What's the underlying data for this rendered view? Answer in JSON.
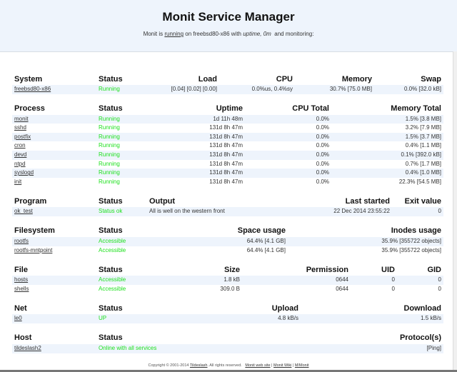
{
  "header": {
    "title": "Monit Service Manager",
    "sub_prefix": "Monit is",
    "sub_running": "running",
    "sub_middle": "on freebsd80-x86 with",
    "sub_uptime": "uptime, 0m",
    "sub_suffix": "and monitoring:"
  },
  "sections": [
    {
      "key": "system",
      "columns": [
        "System",
        "Status",
        "Load",
        "CPU",
        "Memory",
        "Swap"
      ],
      "rows": [
        [
          "freebsd80-x86",
          "Running",
          "[0.04] [0.02] [0.00]",
          "0.0%us, 0.4%sy",
          "30.7% [75.0 MB]",
          "0.0% [32.0 kB]"
        ]
      ]
    },
    {
      "key": "process",
      "columns": [
        "Process",
        "Status",
        "Uptime",
        "CPU Total",
        "Memory Total"
      ],
      "rows": [
        [
          "monit",
          "Running",
          "1d 11h 48m",
          "0.0%",
          "1.5% [3.8 MB]"
        ],
        [
          "sshd",
          "Running",
          "131d 8h 47m",
          "0.0%",
          "3.2% [7.9 MB]"
        ],
        [
          "postfix",
          "Running",
          "131d 8h 47m",
          "0.0%",
          "1.5% [3.7 MB]"
        ],
        [
          "cron",
          "Running",
          "131d 8h 47m",
          "0.0%",
          "0.4% [1.1 MB]"
        ],
        [
          "devd",
          "Running",
          "131d 8h 47m",
          "0.0%",
          "0.1% [392.0 kB]"
        ],
        [
          "ntpd",
          "Running",
          "131d 8h 47m",
          "0.0%",
          "0.7% [1.7 MB]"
        ],
        [
          "syslogd",
          "Running",
          "131d 8h 47m",
          "0.0%",
          "0.4% [1.0 MB]"
        ],
        [
          "init",
          "Running",
          "131d 8h 47m",
          "0.0%",
          "22.3% [54.5 MB]"
        ]
      ]
    },
    {
      "key": "program",
      "columns": [
        "Program",
        "Status",
        "Output",
        "Last started",
        "Exit value"
      ],
      "rows": [
        [
          "ok_test",
          "Status ok",
          "All is well on the western front",
          "22 Dec 2014 23:55:22",
          "0"
        ]
      ]
    },
    {
      "key": "filesystem",
      "columns": [
        "Filesystem",
        "Status",
        "Space usage",
        "Inodes usage"
      ],
      "rows": [
        [
          "rootfs",
          "Accessible",
          "64.4% [4.1 GB]",
          "35.9% [355722 objects]"
        ],
        [
          "rootfs-mntpoint",
          "Accessible",
          "64.4% [4.1 GB]",
          "35.9% [355722 objects]"
        ]
      ]
    },
    {
      "key": "file",
      "columns": [
        "File",
        "Status",
        "Size",
        "Permission",
        "UID",
        "GID"
      ],
      "rows": [
        [
          "hosts",
          "Accessible",
          "1.8 kB",
          "0644",
          "0",
          "0"
        ],
        [
          "shells",
          "Accessible",
          "309.0 B",
          "0644",
          "0",
          "0"
        ]
      ]
    },
    {
      "key": "net",
      "columns": [
        "Net",
        "Status",
        "Upload",
        "Download"
      ],
      "rows": [
        [
          "le0",
          "UP",
          "4.8 kB/s",
          "1.5 kB/s"
        ]
      ]
    },
    {
      "key": "host",
      "columns": [
        "Host",
        "Status",
        "Protocol(s)"
      ],
      "rows": [
        [
          "tildeslash2",
          "Online with all services",
          "[Ping]"
        ]
      ]
    }
  ],
  "footer": {
    "copyright": "Copyright © 2001-2014",
    "company": "Tildeslash",
    "rights": ". All rights reserved.",
    "links": [
      "Monit web site",
      "Monit Wiki",
      "M/Monit"
    ]
  },
  "colors": {
    "header_bg": "#eef4fc",
    "row_alt": "#eef4fc",
    "status_ok": "#1ee01e"
  }
}
